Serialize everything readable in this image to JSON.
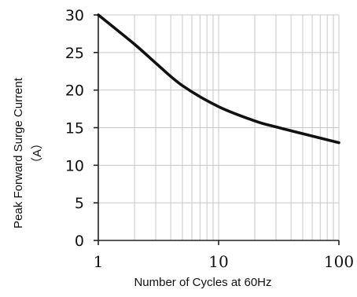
{
  "chart_data": {
    "type": "line",
    "title": "",
    "xlabel": "Number of Cycles at 60Hz",
    "ylabel_line1": "Peak Forward Surge Current",
    "ylabel_line2": "（A）",
    "x_scale": "log",
    "xlim": [
      1,
      100
    ],
    "ylim": [
      0,
      30
    ],
    "x_ticks": [
      1,
      10,
      100
    ],
    "x_tick_labels": [
      "1",
      "10",
      "100"
    ],
    "y_ticks": [
      0,
      5,
      10,
      15,
      20,
      25,
      30
    ],
    "y_tick_labels": [
      "0",
      "5",
      "10",
      "15",
      "20",
      "25",
      "30"
    ],
    "grid": true,
    "legend": "none",
    "series": [
      {
        "x": [
          1,
          2,
          3,
          5,
          10,
          20,
          30,
          50,
          100
        ],
        "y": [
          30,
          26.1,
          23.6,
          20.6,
          17.8,
          15.9,
          15.1,
          14.2,
          13
        ]
      }
    ],
    "colors": {
      "line": "#111111",
      "grid": "#c8c8c8",
      "axis": "#222222"
    }
  }
}
